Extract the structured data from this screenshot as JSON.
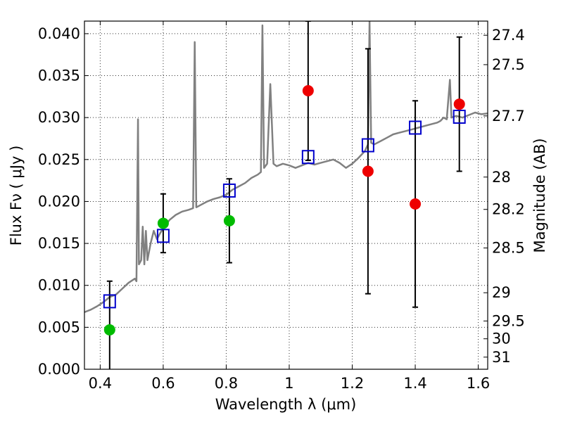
{
  "chart_data": {
    "type": "scatter",
    "xlabel": "Wavelength  λ (μm)",
    "ylabel": "Flux  Fν  ( μJy )",
    "ylabel_right": "Magnitude (AB)",
    "xlim": [
      0.35,
      1.63
    ],
    "ylim": [
      0.0,
      0.0415
    ],
    "grid": true,
    "x_ticks": [
      {
        "value": 0.4,
        "label": "0.4"
      },
      {
        "value": 0.6,
        "label": "0.6"
      },
      {
        "value": 0.8,
        "label": "0.8"
      },
      {
        "value": 1.0,
        "label": "1"
      },
      {
        "value": 1.2,
        "label": "1.2"
      },
      {
        "value": 1.4,
        "label": "1.4"
      },
      {
        "value": 1.6,
        "label": "1.6"
      }
    ],
    "y_ticks": [
      {
        "value": 0.0,
        "label": "0.000"
      },
      {
        "value": 0.005,
        "label": "0.005"
      },
      {
        "value": 0.01,
        "label": "0.010"
      },
      {
        "value": 0.015,
        "label": "0.015"
      },
      {
        "value": 0.02,
        "label": "0.020"
      },
      {
        "value": 0.025,
        "label": "0.025"
      },
      {
        "value": 0.03,
        "label": "0.030"
      },
      {
        "value": 0.035,
        "label": "0.035"
      },
      {
        "value": 0.04,
        "label": "0.040"
      }
    ],
    "right_ticks": [
      {
        "mag": 27.4,
        "label": "27.4"
      },
      {
        "mag": 27.5,
        "label": "27.5"
      },
      {
        "mag": 27.7,
        "label": "27.7"
      },
      {
        "mag": 28.0,
        "label": "28"
      },
      {
        "mag": 28.2,
        "label": "28.2"
      },
      {
        "mag": 28.5,
        "label": "28.5"
      },
      {
        "mag": 29.0,
        "label": "29"
      },
      {
        "mag": 29.5,
        "label": "29.5"
      },
      {
        "mag": 30.0,
        "label": "30"
      },
      {
        "mag": 31.0,
        "label": "31"
      }
    ],
    "series": [
      {
        "kind": "spectrum",
        "color": "#808080",
        "points": [
          [
            0.35,
            0.0068
          ],
          [
            0.37,
            0.0071
          ],
          [
            0.39,
            0.0075
          ],
          [
            0.41,
            0.008
          ],
          [
            0.43,
            0.0086
          ],
          [
            0.45,
            0.0089
          ],
          [
            0.47,
            0.0096
          ],
          [
            0.49,
            0.0103
          ],
          [
            0.51,
            0.0108
          ],
          [
            0.515,
            0.0105
          ],
          [
            0.52,
            0.0298
          ],
          [
            0.523,
            0.0125
          ],
          [
            0.53,
            0.013
          ],
          [
            0.535,
            0.017
          ],
          [
            0.54,
            0.0125
          ],
          [
            0.545,
            0.0165
          ],
          [
            0.55,
            0.013
          ],
          [
            0.56,
            0.015
          ],
          [
            0.57,
            0.0165
          ],
          [
            0.58,
            0.0155
          ],
          [
            0.59,
            0.0162
          ],
          [
            0.6,
            0.0168
          ],
          [
            0.62,
            0.0178
          ],
          [
            0.64,
            0.0184
          ],
          [
            0.66,
            0.0188
          ],
          [
            0.68,
            0.019
          ],
          [
            0.695,
            0.0192
          ],
          [
            0.7,
            0.039
          ],
          [
            0.705,
            0.0193
          ],
          [
            0.72,
            0.0196
          ],
          [
            0.74,
            0.02
          ],
          [
            0.76,
            0.0203
          ],
          [
            0.78,
            0.0205
          ],
          [
            0.8,
            0.0208
          ],
          [
            0.81,
            0.0211
          ],
          [
            0.82,
            0.0214
          ],
          [
            0.84,
            0.0218
          ],
          [
            0.86,
            0.0222
          ],
          [
            0.88,
            0.0228
          ],
          [
            0.9,
            0.0232
          ],
          [
            0.91,
            0.0235
          ],
          [
            0.915,
            0.041
          ],
          [
            0.92,
            0.024
          ],
          [
            0.93,
            0.0245
          ],
          [
            0.94,
            0.034
          ],
          [
            0.95,
            0.0245
          ],
          [
            0.96,
            0.0242
          ],
          [
            0.98,
            0.0245
          ],
          [
            1.0,
            0.0243
          ],
          [
            1.02,
            0.024
          ],
          [
            1.04,
            0.0243
          ],
          [
            1.06,
            0.0246
          ],
          [
            1.08,
            0.0244
          ],
          [
            1.1,
            0.0246
          ],
          [
            1.12,
            0.0248
          ],
          [
            1.14,
            0.025
          ],
          [
            1.16,
            0.0246
          ],
          [
            1.18,
            0.024
          ],
          [
            1.2,
            0.0245
          ],
          [
            1.22,
            0.0252
          ],
          [
            1.24,
            0.026
          ],
          [
            1.25,
            0.0268
          ],
          [
            1.255,
            0.0415
          ],
          [
            1.26,
            0.027
          ],
          [
            1.27,
            0.0268
          ],
          [
            1.29,
            0.0272
          ],
          [
            1.31,
            0.0276
          ],
          [
            1.33,
            0.028
          ],
          [
            1.35,
            0.0282
          ],
          [
            1.37,
            0.0284
          ],
          [
            1.39,
            0.0286
          ],
          [
            1.41,
            0.0288
          ],
          [
            1.43,
            0.029
          ],
          [
            1.45,
            0.0292
          ],
          [
            1.47,
            0.0294
          ],
          [
            1.48,
            0.0296
          ],
          [
            1.49,
            0.03
          ],
          [
            1.5,
            0.0298
          ],
          [
            1.51,
            0.0345
          ],
          [
            1.515,
            0.03
          ],
          [
            1.53,
            0.0302
          ],
          [
            1.55,
            0.03
          ],
          [
            1.57,
            0.0303
          ],
          [
            1.59,
            0.0306
          ],
          [
            1.61,
            0.0304
          ],
          [
            1.63,
            0.0305
          ]
        ]
      },
      {
        "kind": "model-squares",
        "color": "#0000cc",
        "points": [
          [
            0.43,
            0.0081
          ],
          [
            0.6,
            0.0159
          ],
          [
            0.81,
            0.0213
          ],
          [
            1.06,
            0.0253
          ],
          [
            1.25,
            0.0267
          ],
          [
            1.4,
            0.0288
          ],
          [
            1.54,
            0.0301
          ]
        ]
      },
      {
        "kind": "detections",
        "color": "#00bb00",
        "points": [
          {
            "x": 0.43,
            "y": 0.0047,
            "err": 0.0058
          },
          {
            "x": 0.6,
            "y": 0.0174,
            "err": 0.0035
          },
          {
            "x": 0.81,
            "y": 0.0177,
            "err": 0.005
          }
        ]
      },
      {
        "kind": "detections",
        "color": "#ee0000",
        "points": [
          {
            "x": 1.06,
            "y": 0.0332,
            "err": 0.0083
          },
          {
            "x": 1.25,
            "y": 0.0236,
            "err": 0.0146
          },
          {
            "x": 1.4,
            "y": 0.0197,
            "err": 0.0123
          },
          {
            "x": 1.54,
            "y": 0.0316,
            "err": 0.008
          }
        ]
      }
    ]
  }
}
